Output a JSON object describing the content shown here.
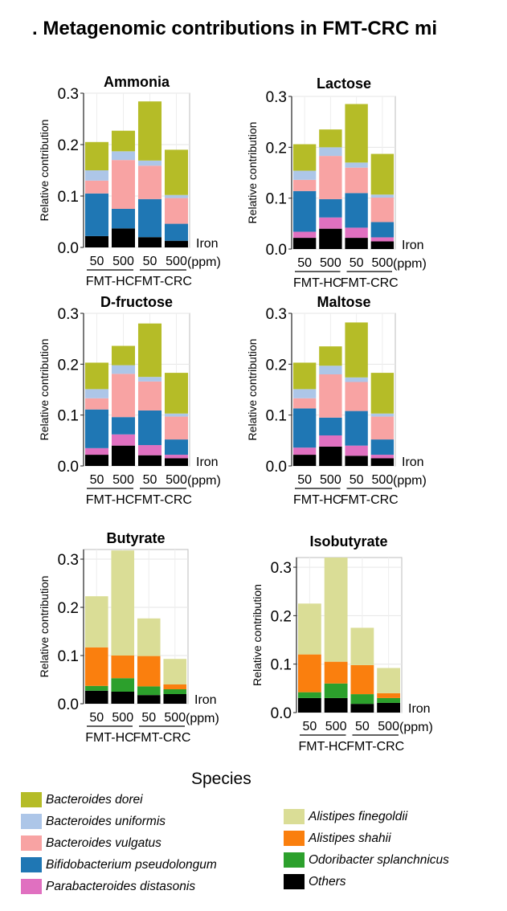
{
  "title": "Metagenomic contributions in FMT-CRC mi",
  "title_prefix": ".",
  "common": {
    "ylabel": "Relative contribution",
    "iron_label": "Iron",
    "ppm_label": "(ppm)",
    "dose_labels": [
      "50",
      "500",
      "50",
      "500"
    ],
    "group_labels": [
      "FMT-HC",
      "FMT-CRC"
    ]
  },
  "species_colors": {
    "Others": "#000000",
    "Parabacteroides distasonis": "#e070c0",
    "Bifidobacterium pseudolongum": "#1f77b4",
    "Bacteroides vulgatus": "#f8a3a3",
    "Bacteroides uniformis": "#adc6e8",
    "Bacteroides dorei": "#b5bc27",
    "Odoribacter splanchnicus": "#2ca02c",
    "Alistipes shahii": "#fa7f0e",
    "Alistipes finegoldii": "#dadd96"
  },
  "legend": {
    "title": "Species",
    "left": [
      "Bacteroides dorei",
      "Bacteroides uniformis",
      "Bacteroides vulgatus",
      "Bifidobacterium pseudolongum",
      "Parabacteroides distasonis"
    ],
    "right": [
      "Alistipes finegoldii",
      "Alistipes shahii",
      "Odoribacter splanchnicus",
      "Others"
    ]
  },
  "chart_data": [
    {
      "type": "bar",
      "stacked": true,
      "title": "Ammonia",
      "ylim": [
        0,
        0.3
      ],
      "yticks": [
        0.0,
        0.1,
        0.2,
        0.3
      ],
      "categories": [
        "50 FMT-HC",
        "500 FMT-HC",
        "50 FMT-CRC",
        "500 FMT-CRC"
      ],
      "series": [
        {
          "name": "Others",
          "values": [
            0.022,
            0.037,
            0.02,
            0.013
          ]
        },
        {
          "name": "Parabacteroides distasonis",
          "values": [
            0.0,
            0.0,
            0.0,
            0.0
          ]
        },
        {
          "name": "Bifidobacterium pseudolongum",
          "values": [
            0.083,
            0.038,
            0.074,
            0.033
          ]
        },
        {
          "name": "Bacteroides vulgatus",
          "values": [
            0.025,
            0.095,
            0.065,
            0.05
          ]
        },
        {
          "name": "Bacteroides uniformis",
          "values": [
            0.02,
            0.017,
            0.01,
            0.006
          ]
        },
        {
          "name": "Bacteroides dorei",
          "values": [
            0.055,
            0.04,
            0.115,
            0.088
          ]
        }
      ]
    },
    {
      "type": "bar",
      "stacked": true,
      "title": "Lactose",
      "ylim": [
        0,
        0.3
      ],
      "yticks": [
        0.0,
        0.1,
        0.2,
        0.3
      ],
      "categories": [
        "50 FMT-HC",
        "500 FMT-HC",
        "50 FMT-CRC",
        "500 FMT-CRC"
      ],
      "series": [
        {
          "name": "Others",
          "values": [
            0.022,
            0.04,
            0.022,
            0.015
          ]
        },
        {
          "name": "Parabacteroides distasonis",
          "values": [
            0.012,
            0.022,
            0.02,
            0.008
          ]
        },
        {
          "name": "Bifidobacterium pseudolongum",
          "values": [
            0.08,
            0.036,
            0.068,
            0.03
          ]
        },
        {
          "name": "Bacteroides vulgatus",
          "values": [
            0.022,
            0.085,
            0.05,
            0.048
          ]
        },
        {
          "name": "Bacteroides uniformis",
          "values": [
            0.018,
            0.017,
            0.01,
            0.006
          ]
        },
        {
          "name": "Bacteroides dorei",
          "values": [
            0.052,
            0.035,
            0.115,
            0.08
          ]
        }
      ]
    },
    {
      "type": "bar",
      "stacked": true,
      "title": "D-fructose",
      "ylim": [
        0,
        0.3
      ],
      "yticks": [
        0.0,
        0.1,
        0.2,
        0.3
      ],
      "categories": [
        "50 FMT-HC",
        "500 FMT-HC",
        "50 FMT-CRC",
        "500 FMT-CRC"
      ],
      "series": [
        {
          "name": "Others",
          "values": [
            0.022,
            0.04,
            0.021,
            0.015
          ]
        },
        {
          "name": "Parabacteroides distasonis",
          "values": [
            0.013,
            0.022,
            0.02,
            0.007
          ]
        },
        {
          "name": "Bifidobacterium pseudolongum",
          "values": [
            0.076,
            0.034,
            0.068,
            0.03
          ]
        },
        {
          "name": "Bacteroides vulgatus",
          "values": [
            0.022,
            0.085,
            0.057,
            0.045
          ]
        },
        {
          "name": "Bacteroides uniformis",
          "values": [
            0.018,
            0.017,
            0.009,
            0.006
          ]
        },
        {
          "name": "Bacteroides dorei",
          "values": [
            0.052,
            0.038,
            0.105,
            0.08
          ]
        }
      ]
    },
    {
      "type": "bar",
      "stacked": true,
      "title": "Maltose",
      "ylim": [
        0,
        0.3
      ],
      "yticks": [
        0.0,
        0.1,
        0.2,
        0.3
      ],
      "categories": [
        "50 FMT-HC",
        "500 FMT-HC",
        "50 FMT-CRC",
        "500 FMT-CRC"
      ],
      "series": [
        {
          "name": "Others",
          "values": [
            0.022,
            0.038,
            0.02,
            0.015
          ]
        },
        {
          "name": "Parabacteroides distasonis",
          "values": [
            0.014,
            0.022,
            0.02,
            0.007
          ]
        },
        {
          "name": "Bifidobacterium pseudolongum",
          "values": [
            0.077,
            0.035,
            0.068,
            0.03
          ]
        },
        {
          "name": "Bacteroides vulgatus",
          "values": [
            0.02,
            0.085,
            0.057,
            0.045
          ]
        },
        {
          "name": "Bacteroides uniformis",
          "values": [
            0.018,
            0.017,
            0.009,
            0.006
          ]
        },
        {
          "name": "Bacteroides dorei",
          "values": [
            0.052,
            0.038,
            0.108,
            0.08
          ]
        }
      ]
    },
    {
      "type": "bar",
      "stacked": true,
      "title": "Butyrate",
      "ylim": [
        0,
        0.32
      ],
      "yticks": [
        0.0,
        0.1,
        0.2,
        0.3
      ],
      "categories": [
        "50 FMT-HC",
        "500 FMT-HC",
        "50 FMT-CRC",
        "500 FMT-CRC"
      ],
      "series": [
        {
          "name": "Others",
          "values": [
            0.027,
            0.025,
            0.018,
            0.02
          ]
        },
        {
          "name": "Odoribacter splanchnicus",
          "values": [
            0.01,
            0.028,
            0.018,
            0.01
          ]
        },
        {
          "name": "Alistipes shahii",
          "values": [
            0.08,
            0.047,
            0.063,
            0.01
          ]
        },
        {
          "name": "Alistipes finegoldii",
          "values": [
            0.106,
            0.218,
            0.078,
            0.053
          ]
        }
      ]
    },
    {
      "type": "bar",
      "stacked": true,
      "title": "Isobutyrate",
      "ylim": [
        0,
        0.32
      ],
      "yticks": [
        0.0,
        0.1,
        0.2,
        0.3
      ],
      "categories": [
        "50 FMT-HC",
        "500 FMT-HC",
        "50 FMT-CRC",
        "500 FMT-CRC"
      ],
      "series": [
        {
          "name": "Others",
          "values": [
            0.03,
            0.03,
            0.018,
            0.02
          ]
        },
        {
          "name": "Odoribacter splanchnicus",
          "values": [
            0.012,
            0.03,
            0.02,
            0.01
          ]
        },
        {
          "name": "Alistipes shahii",
          "values": [
            0.078,
            0.045,
            0.06,
            0.01
          ]
        },
        {
          "name": "Alistipes finegoldii",
          "values": [
            0.105,
            0.215,
            0.077,
            0.052
          ]
        }
      ]
    }
  ]
}
